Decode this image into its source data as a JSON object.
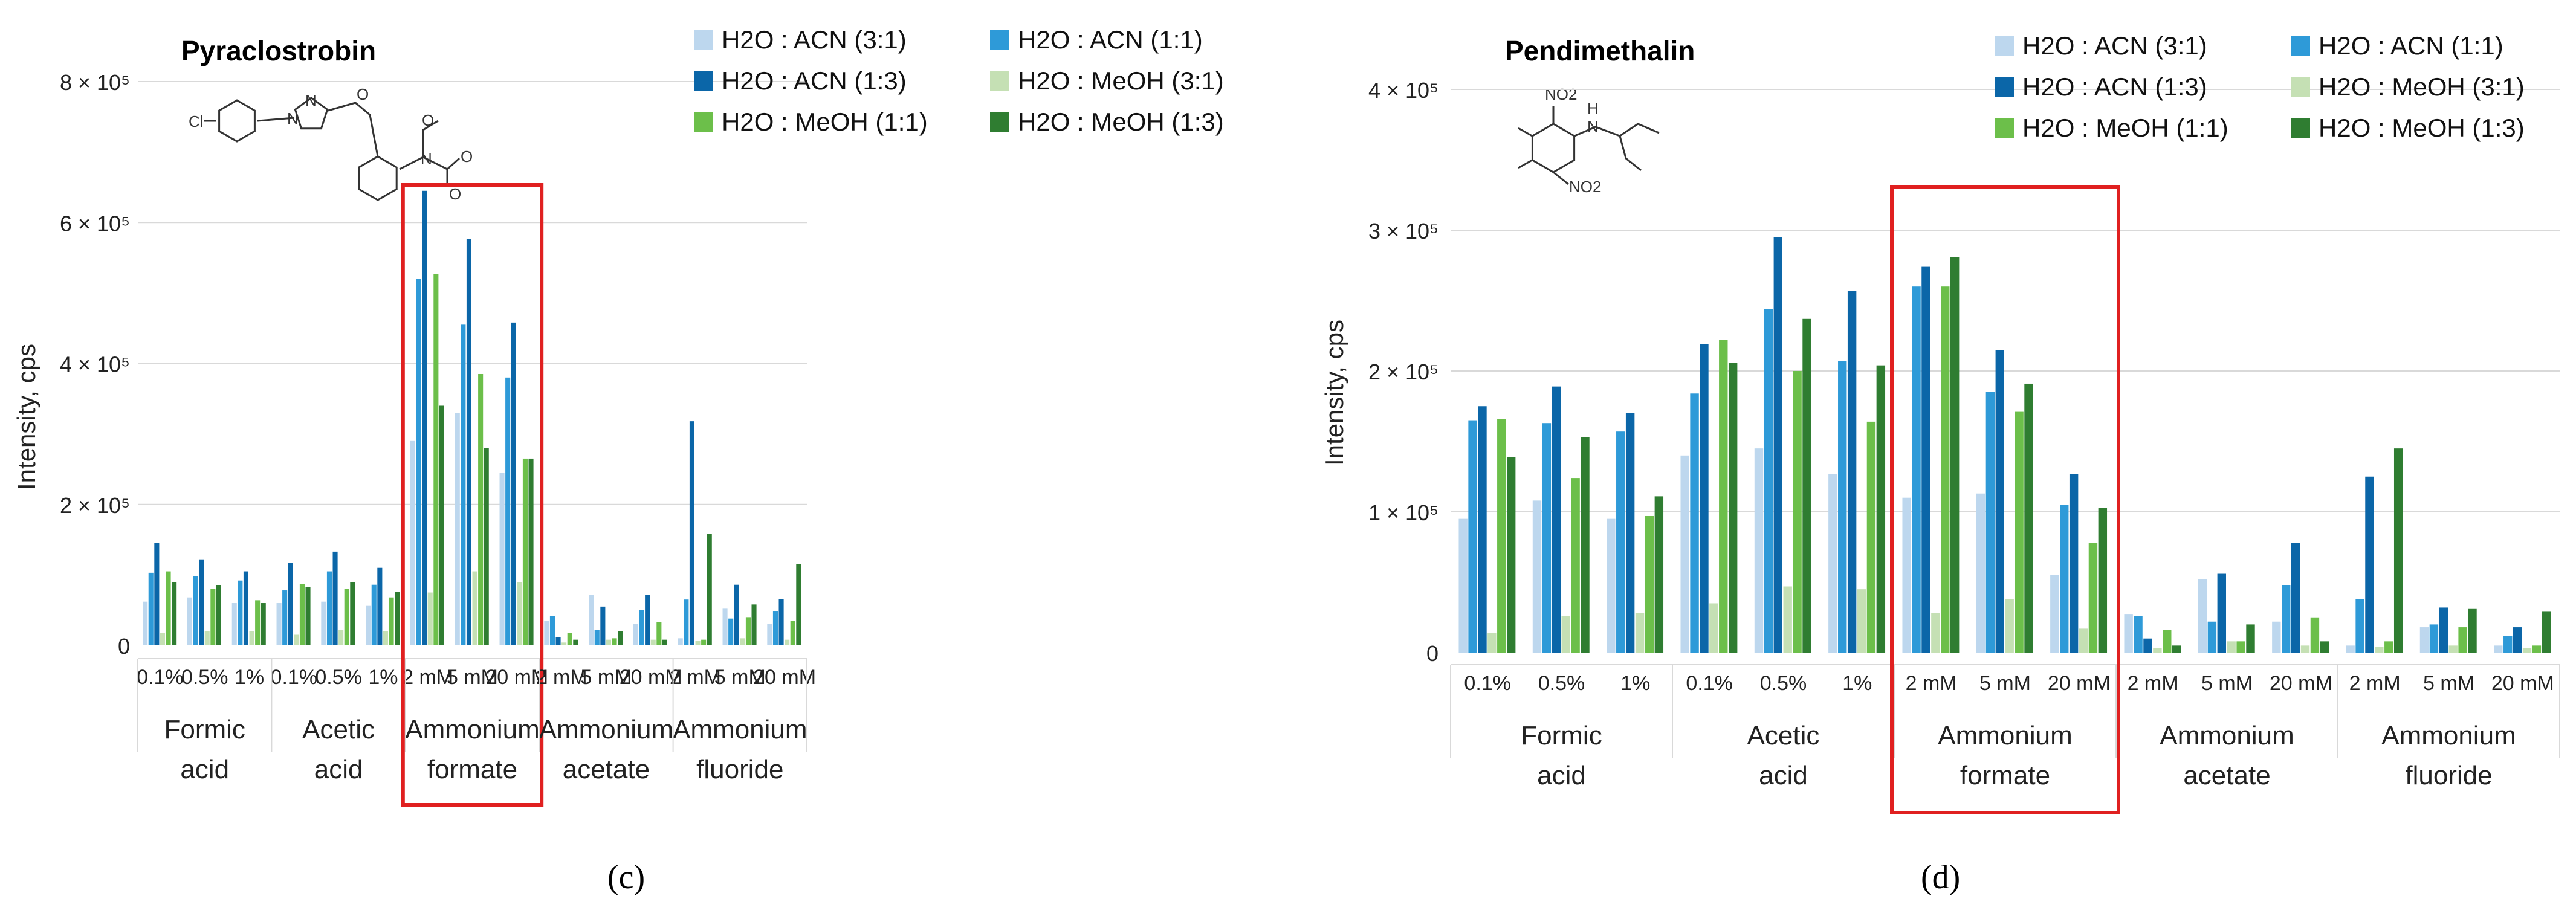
{
  "colors": {
    "H2O : ACN (3:1)": "#bdd7ee",
    "H2O : ACN (1:1)": "#2e9ad8",
    "H2O : ACN (1:3)": "#0b66a8",
    "H2O : MeOH (3:1)": "#c5e0b4",
    "H2O : MeOH (1:1)": "#6cbf4a",
    "H2O : MeOH (1:3)": "#2f7d31",
    "highlight": "#e02020",
    "grid": "#d9d9d9",
    "axis_text": "#222222"
  },
  "chart_data": [
    {
      "type": "bar",
      "title": "Pyraclostrobin",
      "panel_label": "(c)",
      "structure_labels": [
        "Cl",
        "N",
        "N",
        "O",
        "N",
        "O",
        "O",
        "O"
      ],
      "ylabel": "Intensity, cps",
      "ylim": [
        0,
        800000
      ],
      "yticks": [
        {
          "value": 0,
          "label": "0"
        },
        {
          "value": 200000,
          "label": "2 × 10⁵"
        },
        {
          "value": 400000,
          "label": "4 × 10⁵"
        },
        {
          "value": 600000,
          "label": "6 × 10⁵"
        },
        {
          "value": 800000,
          "label": "8 × 10⁵"
        }
      ],
      "legend": [
        "H2O : ACN (3:1)",
        "H2O : ACN (1:1)",
        "H2O : ACN (1:3)",
        "H2O : MeOH (3:1)",
        "H2O : MeOH (1:1)",
        "H2O : MeOH (1:3)"
      ],
      "groups": [
        {
          "name": "Formic acid",
          "categories": [
            "0.1%",
            "0.5%",
            "1%"
          ]
        },
        {
          "name": "Acetic acid",
          "categories": [
            "0.1%",
            "0.5%",
            "1%"
          ]
        },
        {
          "name": "Ammonium formate",
          "categories": [
            "2 mM",
            "5 mM",
            "20 mM"
          ],
          "highlight": true
        },
        {
          "name": "Ammonium acetate",
          "categories": [
            "2 mM",
            "5 mM",
            "20 mM"
          ]
        },
        {
          "name": "Ammonium fluoride",
          "categories": [
            "2 mM",
            "5 mM",
            "20 mM"
          ]
        }
      ],
      "series": [
        {
          "name": "H2O : ACN (3:1)",
          "values": [
            62000,
            68000,
            60000,
            60000,
            62000,
            56000,
            290000,
            330000,
            245000,
            35000,
            72000,
            30000,
            10000,
            52000,
            30000
          ]
        },
        {
          "name": "H2O : ACN (1:1)",
          "values": [
            103000,
            98000,
            92000,
            78000,
            105000,
            86000,
            520000,
            455000,
            380000,
            42000,
            22000,
            50000,
            65000,
            38000,
            48000
          ]
        },
        {
          "name": "H2O : ACN (1:3)",
          "values": [
            145000,
            122000,
            105000,
            117000,
            133000,
            110000,
            645000,
            577000,
            458000,
            12000,
            55000,
            72000,
            318000,
            86000,
            66000
          ]
        },
        {
          "name": "H2O : MeOH (3:1)",
          "values": [
            18000,
            20000,
            20000,
            15000,
            22000,
            20000,
            75000,
            105000,
            90000,
            4000,
            8000,
            8000,
            6000,
            10000,
            8000
          ]
        },
        {
          "name": "H2O : MeOH (1:1)",
          "values": [
            105000,
            80000,
            64000,
            87000,
            80000,
            68000,
            527000,
            385000,
            265000,
            18000,
            10000,
            33000,
            8000,
            40000,
            35000
          ]
        },
        {
          "name": "H2O : MeOH (1:3)",
          "values": [
            90000,
            85000,
            60000,
            83000,
            90000,
            76000,
            340000,
            280000,
            265000,
            8000,
            20000,
            8000,
            158000,
            58000,
            115000
          ]
        }
      ]
    },
    {
      "type": "bar",
      "title": "Pendimethalin",
      "panel_label": "(d)",
      "structure_labels": [
        "NO2",
        "H",
        "N",
        "NO2"
      ],
      "ylabel": "Intensity, cps",
      "ylim": [
        0,
        400000
      ],
      "yticks": [
        {
          "value": 0,
          "label": "0"
        },
        {
          "value": 100000,
          "label": "1 × 10⁵"
        },
        {
          "value": 200000,
          "label": "2 × 10⁵"
        },
        {
          "value": 300000,
          "label": "3 × 10⁵"
        },
        {
          "value": 400000,
          "label": "4 × 10⁵"
        }
      ],
      "legend": [
        "H2O : ACN (3:1)",
        "H2O : ACN (1:1)",
        "H2O : ACN (1:3)",
        "H2O : MeOH (3:1)",
        "H2O : MeOH (1:1)",
        "H2O : MeOH (1:3)"
      ],
      "groups": [
        {
          "name": "Formic acid",
          "categories": [
            "0.1%",
            "0.5%",
            "1%"
          ]
        },
        {
          "name": "Acetic acid",
          "categories": [
            "0.1%",
            "0.5%",
            "1%"
          ]
        },
        {
          "name": "Ammonium formate",
          "categories": [
            "2 mM",
            "5 mM",
            "20 mM"
          ],
          "highlight": true
        },
        {
          "name": "Ammonium acetate",
          "categories": [
            "2 mM",
            "5 mM",
            "20 mM"
          ]
        },
        {
          "name": "Ammonium fluoride",
          "categories": [
            "2 mM",
            "5 mM",
            "20 mM"
          ]
        }
      ],
      "series": [
        {
          "name": "H2O : ACN (3:1)",
          "values": [
            95000,
            108000,
            95000,
            140000,
            145000,
            127000,
            110000,
            113000,
            55000,
            27000,
            52000,
            22000,
            5000,
            18000,
            5000
          ]
        },
        {
          "name": "H2O : ACN (1:1)",
          "values": [
            165000,
            163000,
            157000,
            184000,
            244000,
            207000,
            260000,
            185000,
            105000,
            26000,
            22000,
            48000,
            38000,
            20000,
            12000
          ]
        },
        {
          "name": "H2O : ACN (1:3)",
          "values": [
            175000,
            189000,
            170000,
            219000,
            295000,
            257000,
            274000,
            215000,
            127000,
            10000,
            56000,
            78000,
            125000,
            32000,
            18000
          ]
        },
        {
          "name": "H2O : MeOH (3:1)",
          "values": [
            14000,
            26000,
            28000,
            35000,
            47000,
            45000,
            28000,
            38000,
            17000,
            3000,
            8000,
            5000,
            4000,
            5000,
            3000
          ]
        },
        {
          "name": "H2O : MeOH (1:1)",
          "values": [
            166000,
            124000,
            97000,
            222000,
            200000,
            164000,
            260000,
            171000,
            78000,
            16000,
            8000,
            25000,
            8000,
            18000,
            5000
          ]
        },
        {
          "name": "H2O : MeOH (1:3)",
          "values": [
            139000,
            153000,
            111000,
            206000,
            237000,
            204000,
            281000,
            191000,
            103000,
            5000,
            20000,
            8000,
            145000,
            31000,
            29000
          ]
        }
      ]
    }
  ]
}
